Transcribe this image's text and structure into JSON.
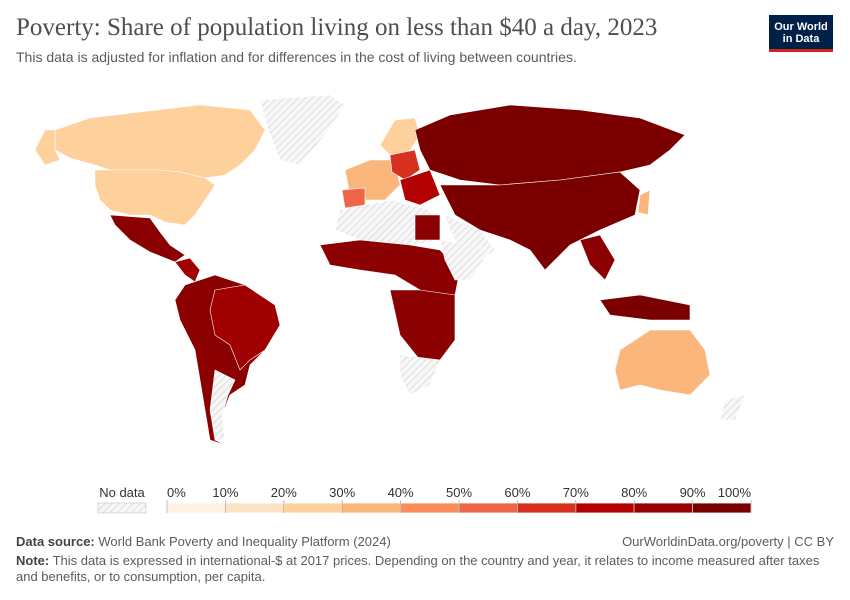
{
  "header": {
    "title": "Poverty: Share of population living on less than $40 a day, 2023",
    "subtitle": "This data is adjusted for inflation and for differences in the cost of living between countries.",
    "logo": [
      "Our World",
      "in Data"
    ]
  },
  "legend": {
    "no_data": "No data",
    "labels": [
      "0%",
      "10%",
      "20%",
      "30%",
      "40%",
      "50%",
      "60%",
      "70%",
      "80%",
      "90%",
      "100%"
    ],
    "colors": [
      "#fff2e2",
      "#fde3c4",
      "#fdd09c",
      "#fbb67c",
      "#fc8d59",
      "#ef6548",
      "#d7301f",
      "#b30000",
      "#990000",
      "#7a0000"
    ]
  },
  "footer": {
    "source_label": "Data source:",
    "source": "World Bank Poverty and Inequality Platform (2024)",
    "link": "OurWorldinData.org/poverty | CC BY",
    "note_label": "Note:",
    "note": "This data is expressed in international-$ at 2017 prices. Depending on the country and year, it relates to income measured after taxes and benefits, or to consumption, per capita."
  }
}
